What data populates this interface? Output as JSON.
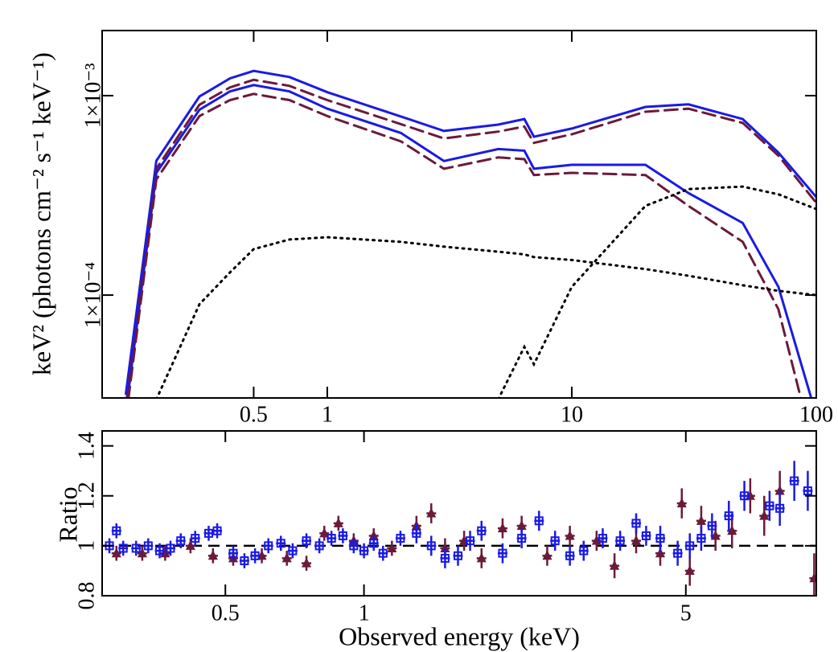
{
  "chart_data": [
    {
      "type": "line",
      "xscale": "log",
      "yscale": "log",
      "ylabel": "keV² (photons cm⁻² s⁻¹ keV⁻¹)",
      "xlim": [
        0.12,
        100
      ],
      "ylim": [
        3.05e-05,
        0.00212
      ],
      "xticks": [
        0.5,
        1,
        10,
        100
      ],
      "yticks": [
        {
          "value": 0.0001,
          "label": "1×10⁻⁴"
        },
        {
          "value": 0.001,
          "label": "1×10⁻³"
        }
      ],
      "x": [
        0.15,
        0.2,
        0.3,
        0.4,
        0.5,
        0.7,
        1,
        2,
        3,
        5,
        6.4,
        7,
        10,
        20,
        30,
        50,
        70,
        100
      ],
      "series": [
        {
          "color": "#1a1ae6",
          "style": "solid",
          "values": [
            3.2e-05,
            0.000471,
            0.00099,
            0.00122,
            0.00133,
            0.00124,
            0.00104,
            0.000786,
            0.000665,
            0.000716,
            0.000763,
            0.000622,
            0.000684,
            0.000878,
            0.000904,
            0.000763,
            0.000518,
            0.00031
          ]
        },
        {
          "color": "#6b1a3a",
          "style": "dashed",
          "values": [
            2.8e-05,
            0.00043,
            0.0009,
            0.0011,
            0.0012,
            0.00112,
            0.00095,
            0.00072,
            0.00061,
            0.00066,
            0.0007,
            0.00058,
            0.00064,
            0.00083,
            0.00086,
            0.00073,
            0.0005,
            0.00029
          ]
        },
        {
          "color": "#1a1ae6",
          "style": "solid",
          "values": [
            2.6e-05,
            0.00041,
            0.00085,
            0.00105,
            0.00113,
            0.00105,
            0.00086,
            0.00065,
            0.00047,
            0.00054,
            0.00053,
            0.00043,
            0.00045,
            0.00045,
            0.000325,
            0.00023,
            0.00011,
            2.5e-05
          ]
        },
        {
          "color": "#6b1a3a",
          "style": "dashed",
          "values": [
            2.4e-05,
            0.00038,
            0.00079,
            0.00095,
            0.00102,
            0.00095,
            0.00079,
            0.00059,
            0.00043,
            0.00049,
            0.00048,
            0.0004,
            0.00041,
            0.0004,
            0.00028,
            0.000185,
            8.5e-05,
            1.5e-05
          ]
        },
        {
          "color": "#000000",
          "style": "dotted",
          "values": [
            null,
            3e-05,
            9e-05,
            0.00013,
            0.00017,
            0.00019,
            0.000195,
            0.000185,
            0.000175,
            0.000165,
            0.00016,
            0.000155,
            0.00015,
            0.000135,
            0.000125,
            0.000112,
            0.000105,
            0.0001
          ]
        },
        {
          "color": "#000000",
          "style": "dotted",
          "values": [
            null,
            null,
            null,
            null,
            null,
            null,
            null,
            null,
            null,
            3e-05,
            5.5e-05,
            4.5e-05,
            0.00011,
            0.00028,
            0.00034,
            0.00035,
            0.00032,
            0.00027
          ]
        }
      ]
    },
    {
      "type": "scatter",
      "xscale": "log",
      "xlabel": "Observed energy (keV)",
      "ylabel": "Ratio",
      "xlim": [
        0.27,
        9.6
      ],
      "ylim": [
        0.8,
        1.46
      ],
      "xticks": [
        0.5,
        1,
        5
      ],
      "yticks": [
        0.8,
        1,
        1.2,
        1.4
      ],
      "hline": 1,
      "series": [
        {
          "color": "#6b1a3a",
          "marker": "triangle",
          "x": [
            0.29,
            0.33,
            0.37,
            0.42,
            0.47,
            0.52,
            0.6,
            0.68,
            0.75,
            0.82,
            0.88,
            0.95,
            1.05,
            1.15,
            1.3,
            1.4,
            1.5,
            1.65,
            1.8,
            2.0,
            2.2,
            2.5,
            2.8,
            3.2,
            3.5,
            3.9,
            4.4,
            4.9,
            5.1,
            5.4,
            5.8,
            6.3,
            6.9,
            7.4,
            8.0,
            9.5
          ],
          "values": [
            0.97,
            0.97,
            0.97,
            1.0,
            0.96,
            0.95,
            0.96,
            0.95,
            0.93,
            1.05,
            1.09,
            1.02,
            1.04,
            0.99,
            1.08,
            1.13,
            0.99,
            1.02,
            0.95,
            1.07,
            1.08,
            0.96,
            1.04,
            1.02,
            0.92,
            1.02,
            0.97,
            1.17,
            0.9,
            1.1,
            1.04,
            1.06,
            1.2,
            1.12,
            1.22,
            0.87
          ],
          "errors": [
            0.03,
            0.03,
            0.03,
            0.03,
            0.03,
            0.03,
            0.03,
            0.03,
            0.03,
            0.03,
            0.03,
            0.03,
            0.03,
            0.03,
            0.04,
            0.04,
            0.04,
            0.04,
            0.04,
            0.04,
            0.04,
            0.04,
            0.04,
            0.04,
            0.05,
            0.05,
            0.05,
            0.06,
            0.06,
            0.06,
            0.06,
            0.07,
            0.07,
            0.08,
            0.08,
            0.1
          ]
        },
        {
          "color": "#1a1ae6",
          "marker": "square",
          "x": [
            0.28,
            0.29,
            0.3,
            0.32,
            0.34,
            0.36,
            0.38,
            0.4,
            0.43,
            0.46,
            0.48,
            0.52,
            0.55,
            0.58,
            0.62,
            0.66,
            0.7,
            0.75,
            0.8,
            0.85,
            0.9,
            0.95,
            1.0,
            1.05,
            1.1,
            1.2,
            1.3,
            1.4,
            1.5,
            1.6,
            1.7,
            1.8,
            2.0,
            2.2,
            2.4,
            2.6,
            2.8,
            3.0,
            3.3,
            3.6,
            3.9,
            4.1,
            4.4,
            4.8,
            5.1,
            5.4,
            5.7,
            6.2,
            6.7,
            7.6,
            8.0,
            8.6,
            9.2
          ],
          "values": [
            1.0,
            1.06,
            0.99,
            0.99,
            1.0,
            0.98,
            0.99,
            1.02,
            1.03,
            1.05,
            1.06,
            0.97,
            0.94,
            0.96,
            1.0,
            1.01,
            0.98,
            1.02,
            1.0,
            1.03,
            1.04,
            1.0,
            0.98,
            1.01,
            0.97,
            1.03,
            1.05,
            1.0,
            0.95,
            0.96,
            1.02,
            1.06,
            0.97,
            1.03,
            1.1,
            1.02,
            0.96,
            0.98,
            1.03,
            1.02,
            1.09,
            1.04,
            1.03,
            0.97,
            1.0,
            1.03,
            1.08,
            1.12,
            1.2,
            1.16,
            1.15,
            1.26,
            1.22
          ],
          "errors": [
            0.03,
            0.03,
            0.03,
            0.03,
            0.03,
            0.03,
            0.03,
            0.03,
            0.03,
            0.03,
            0.03,
            0.03,
            0.03,
            0.03,
            0.03,
            0.03,
            0.03,
            0.03,
            0.03,
            0.03,
            0.03,
            0.03,
            0.03,
            0.03,
            0.03,
            0.03,
            0.04,
            0.04,
            0.04,
            0.04,
            0.04,
            0.04,
            0.04,
            0.04,
            0.04,
            0.04,
            0.04,
            0.04,
            0.04,
            0.04,
            0.04,
            0.04,
            0.05,
            0.05,
            0.05,
            0.05,
            0.05,
            0.06,
            0.06,
            0.06,
            0.07,
            0.08,
            0.08
          ]
        }
      ]
    }
  ]
}
